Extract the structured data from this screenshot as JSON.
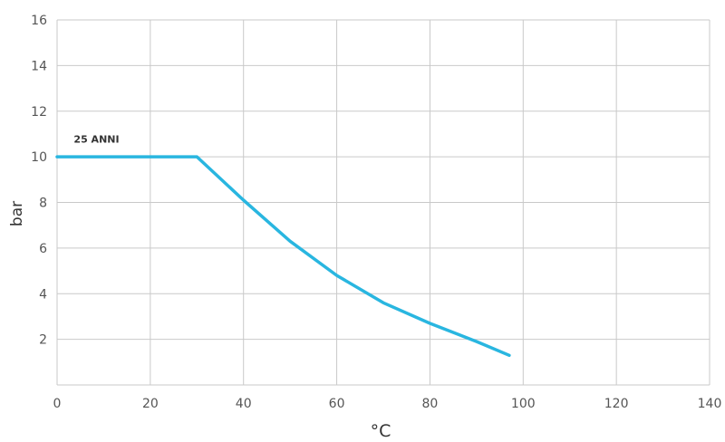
{
  "chart_data": {
    "type": "line",
    "title": "",
    "xlabel": "°C",
    "ylabel": "bar",
    "xlim": [
      0,
      140
    ],
    "ylim": [
      0,
      16
    ],
    "x_ticks": [
      "0",
      "20",
      "40",
      "60",
      "80",
      "100",
      "120",
      "140"
    ],
    "y_ticks": [
      "2",
      "4",
      "6",
      "8",
      "10",
      "12",
      "14",
      "16"
    ],
    "grid": true,
    "series": [
      {
        "name": "25 ANNI",
        "color": "#29b6e0",
        "x": [
          0,
          30,
          40,
          50,
          60,
          70,
          80,
          90,
          97
        ],
        "y": [
          10,
          10,
          8.1,
          6.3,
          4.8,
          3.6,
          2.7,
          1.9,
          1.3
        ]
      }
    ],
    "annotations": [
      {
        "text": "25 ANNI",
        "x": 3,
        "y": 10.5
      }
    ]
  }
}
